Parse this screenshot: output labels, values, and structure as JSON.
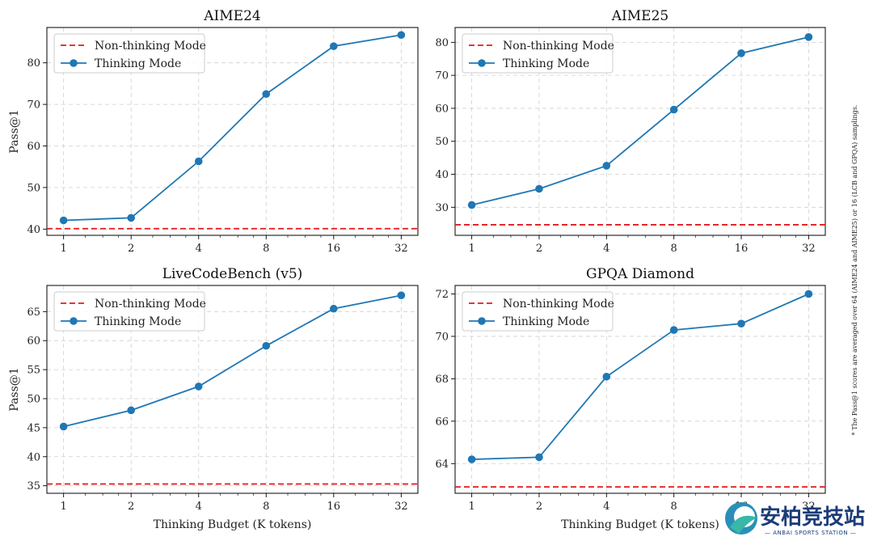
{
  "note": "* The Pass@1 scores are averaged over 64 (AIME24 and AIME25) or 16 (LCB and GPQA) samplings.",
  "watermark": {
    "cn": "安柏竞技站",
    "en": "— ANBAI SPORTS STATION —"
  },
  "colors": {
    "thinking": "#1f77b4",
    "nonthinking": "#e41a1c",
    "grid": "#cfcfcf"
  },
  "chart_data": [
    {
      "type": "line",
      "title": "AIME24",
      "xlabel": "",
      "ylabel": "Pass@1",
      "x": [
        "1",
        "2",
        "4",
        "8",
        "16",
        "32"
      ],
      "ylim": [
        38.5,
        88.5
      ],
      "yticks": [
        40,
        50,
        60,
        70,
        80
      ],
      "grid": true,
      "legend": "top-left",
      "series": [
        {
          "name": "Non-thinking Mode",
          "style": "dashed",
          "value": 40.1
        },
        {
          "name": "Thinking Mode",
          "style": "line-marker",
          "values": [
            42.1,
            42.7,
            56.3,
            72.5,
            84.0,
            86.7
          ]
        }
      ]
    },
    {
      "type": "line",
      "title": "AIME25",
      "xlabel": "",
      "ylabel": "",
      "x": [
        "1",
        "2",
        "4",
        "8",
        "16",
        "32"
      ],
      "ylim": [
        21.5,
        84.5
      ],
      "yticks": [
        30,
        40,
        50,
        60,
        70,
        80
      ],
      "grid": true,
      "legend": "top-left",
      "series": [
        {
          "name": "Non-thinking Mode",
          "style": "dashed",
          "value": 24.7
        },
        {
          "name": "Thinking Mode",
          "style": "line-marker",
          "values": [
            30.7,
            35.6,
            42.6,
            59.6,
            76.7,
            81.6
          ]
        }
      ]
    },
    {
      "type": "line",
      "title": "LiveCodeBench (v5)",
      "xlabel": "Thinking Budget (K tokens)",
      "ylabel": "Pass@1",
      "x": [
        "1",
        "2",
        "4",
        "8",
        "16",
        "32"
      ],
      "ylim": [
        33.7,
        69.5
      ],
      "yticks": [
        35,
        40,
        45,
        50,
        55,
        60,
        65
      ],
      "grid": true,
      "legend": "top-left",
      "series": [
        {
          "name": "Non-thinking Mode",
          "style": "dashed",
          "value": 35.3
        },
        {
          "name": "Thinking Mode",
          "style": "line-marker",
          "values": [
            45.2,
            48.0,
            52.1,
            59.1,
            65.5,
            67.8
          ]
        }
      ]
    },
    {
      "type": "line",
      "title": "GPQA Diamond",
      "xlabel": "Thinking Budget (K tokens)",
      "ylabel": "",
      "x": [
        "1",
        "2",
        "4",
        "8",
        "16",
        "32"
      ],
      "ylim": [
        62.6,
        72.4
      ],
      "yticks": [
        64,
        66,
        68,
        70,
        72
      ],
      "grid": true,
      "legend": "top-left",
      "series": [
        {
          "name": "Non-thinking Mode",
          "style": "dashed",
          "value": 62.9
        },
        {
          "name": "Thinking Mode",
          "style": "line-marker",
          "values": [
            64.2,
            64.3,
            68.1,
            70.3,
            70.6,
            72.0
          ]
        }
      ]
    }
  ]
}
